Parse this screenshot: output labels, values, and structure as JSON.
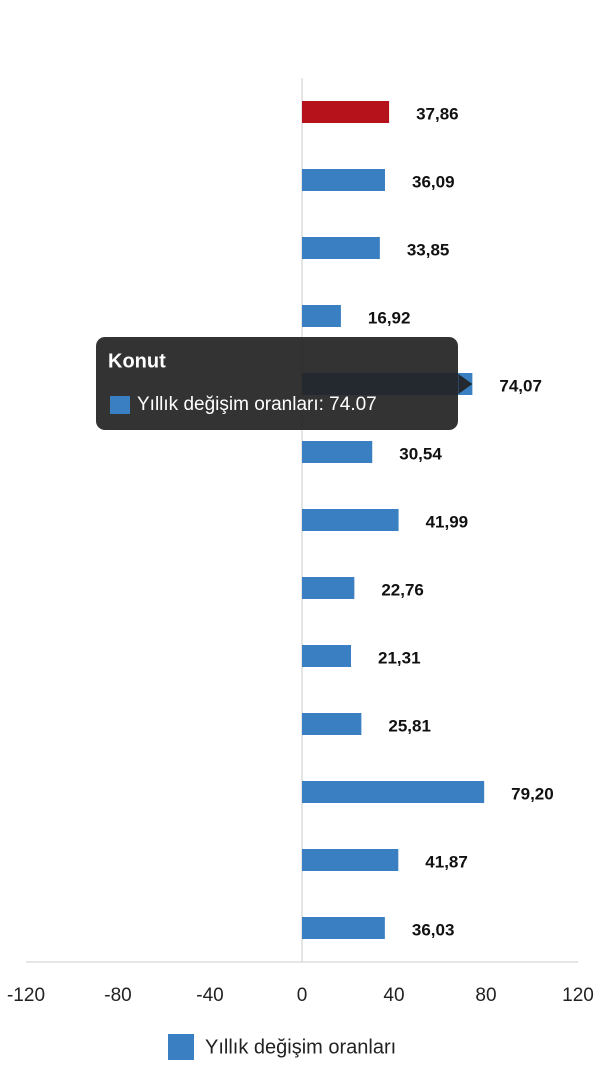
{
  "chart_data": {
    "type": "bar",
    "orientation": "horizontal",
    "categories": [
      null,
      null,
      null,
      null,
      "Konut",
      null,
      null,
      null,
      null,
      null,
      null,
      null,
      null
    ],
    "series": [
      {
        "name": "Yıllık değişim oranları",
        "color": "#3a7fc1",
        "colors": [
          "#b5121b",
          "#3a7fc1",
          "#3a7fc1",
          "#3a7fc1",
          "#3a7fc1",
          "#3a7fc1",
          "#3a7fc1",
          "#3a7fc1",
          "#3a7fc1",
          "#3a7fc1",
          "#3a7fc1",
          "#3a7fc1",
          "#3a7fc1"
        ],
        "values": [
          37.86,
          36.09,
          33.85,
          16.92,
          74.07,
          30.54,
          41.99,
          22.76,
          21.31,
          25.81,
          79.2,
          41.87,
          36.03
        ],
        "value_labels": [
          "37,86",
          "36,09",
          "33,85",
          "16,92",
          "74,07",
          "30,54",
          "41,99",
          "22,76",
          "21,31",
          "25,81",
          "79,20",
          "41,87",
          "36,03"
        ]
      }
    ],
    "xlim": [
      -120,
      120
    ],
    "xticks": [
      -120,
      -80,
      -40,
      0,
      40,
      80,
      120
    ],
    "legend": "bottom",
    "tooltip": {
      "text": "Yıllık değişim oranları: 74.07"
    }
  }
}
